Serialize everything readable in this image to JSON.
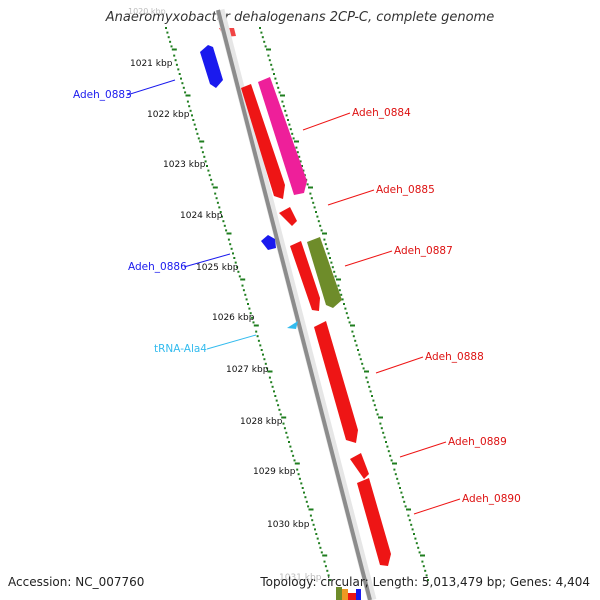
{
  "title": "Anaeromyxobacter dehalogenans 2CP-C, complete genome",
  "footer": {
    "accession": "Accession: NC_007760",
    "summary": "Topology: circular; Length: 5,013,479 bp; Genes: 4,404"
  },
  "ruler": {
    "first_label": "1020 kbp",
    "last_label": "1031 kbp",
    "labels": [
      "1021 kbp",
      "1022 kbp",
      "1023 kbp",
      "1024 kbp",
      "1025 kbp",
      "1026 kbp",
      "1027 kbp",
      "1028 kbp",
      "1029 kbp",
      "1030 kbp"
    ]
  },
  "features": [
    {
      "name": "Adeh_0883",
      "color": "#1a1aee",
      "strand": "left"
    },
    {
      "name": "Adeh_0884",
      "color": "#ee1515",
      "strand": "right"
    },
    {
      "name": "Adeh_0885",
      "color": "#ee1515",
      "strand": "right"
    },
    {
      "name": "Adeh_0886",
      "color": "#1a1aee",
      "strand": "left"
    },
    {
      "name": "Adeh_0887",
      "color": "#ee1515",
      "strand": "right"
    },
    {
      "name": "tRNA-Ala4",
      "color": "#33bbee",
      "strand": "left"
    },
    {
      "name": "Adeh_0888",
      "color": "#ee1515",
      "strand": "right"
    },
    {
      "name": "Adeh_0889",
      "color": "#ee1515",
      "strand": "right"
    },
    {
      "name": "Adeh_0890",
      "color": "#ee1515",
      "strand": "right"
    }
  ],
  "colors": {
    "backbone": "#8c8c8c",
    "ticks": "#1e7d1e",
    "reverse_gene": "#1a1aee",
    "forward_gene": "#ee1515",
    "pink_gene": "#ee1f9a",
    "olive_gene": "#6e8c2a",
    "trna": "#33bbee"
  }
}
